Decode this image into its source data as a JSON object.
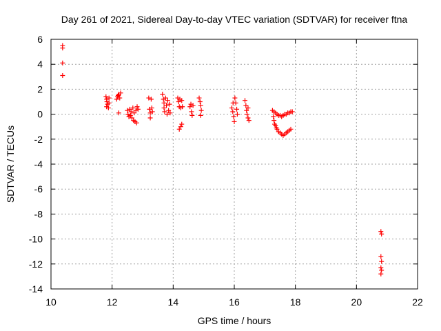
{
  "chart_data": {
    "type": "scatter",
    "title": "Day 261 of 2021, Sidereal Day-to-day VTEC variation (SDTVAR) for receiver ftna",
    "xlabel": "GPS time / hours",
    "ylabel": "SDTVAR / TECUs",
    "xlim": [
      10,
      22
    ],
    "ylim": [
      -14,
      6
    ],
    "xticks": [
      10,
      12,
      14,
      16,
      18,
      20,
      22
    ],
    "yticks": [
      -14,
      -12,
      -10,
      -8,
      -6,
      -4,
      -2,
      0,
      2,
      4,
      6
    ],
    "grid": true,
    "marker": "plus",
    "color": "#ff0000",
    "series": [
      {
        "name": "SDTVAR",
        "points": [
          [
            10.38,
            5.5
          ],
          [
            10.38,
            5.3
          ],
          [
            10.38,
            4.1
          ],
          [
            10.38,
            3.1
          ],
          [
            11.8,
            1.4
          ],
          [
            11.82,
            1.2
          ],
          [
            11.83,
            1.0
          ],
          [
            11.85,
            0.8
          ],
          [
            11.82,
            0.6
          ],
          [
            11.88,
            0.5
          ],
          [
            11.9,
            1.3
          ],
          [
            11.9,
            0.9
          ],
          [
            12.15,
            1.2
          ],
          [
            12.18,
            1.4
          ],
          [
            12.2,
            1.5
          ],
          [
            12.22,
            1.6
          ],
          [
            12.25,
            1.3
          ],
          [
            12.28,
            1.7
          ],
          [
            12.22,
            0.1
          ],
          [
            12.5,
            0.3
          ],
          [
            12.52,
            0.0
          ],
          [
            12.55,
            -0.2
          ],
          [
            12.58,
            0.4
          ],
          [
            12.6,
            -0.1
          ],
          [
            12.62,
            0.2
          ],
          [
            12.65,
            -0.3
          ],
          [
            12.68,
            0.5
          ],
          [
            12.7,
            -0.5
          ],
          [
            12.72,
            0.1
          ],
          [
            12.75,
            -0.6
          ],
          [
            12.78,
            0.3
          ],
          [
            12.8,
            -0.7
          ],
          [
            12.82,
            0.6
          ],
          [
            12.85,
            0.4
          ],
          [
            13.2,
            1.3
          ],
          [
            13.22,
            0.4
          ],
          [
            13.25,
            0.1
          ],
          [
            13.25,
            -0.3
          ],
          [
            13.28,
            1.2
          ],
          [
            13.3,
            0.5
          ],
          [
            13.32,
            0.2
          ],
          [
            13.65,
            1.6
          ],
          [
            13.68,
            1.2
          ],
          [
            13.7,
            0.9
          ],
          [
            13.7,
            0.5
          ],
          [
            13.72,
            0.2
          ],
          [
            13.75,
            1.3
          ],
          [
            13.78,
            0.7
          ],
          [
            13.8,
            0.0
          ],
          [
            13.82,
            1.1
          ],
          [
            13.85,
            0.3
          ],
          [
            13.88,
            0.8
          ],
          [
            13.9,
            0.1
          ],
          [
            14.15,
            1.3
          ],
          [
            14.18,
            1.0
          ],
          [
            14.2,
            0.6
          ],
          [
            14.22,
            1.2
          ],
          [
            14.25,
            0.5
          ],
          [
            14.28,
            1.1
          ],
          [
            14.3,
            0.6
          ],
          [
            14.2,
            -1.2
          ],
          [
            14.25,
            -1.0
          ],
          [
            14.28,
            -0.8
          ],
          [
            14.55,
            0.6
          ],
          [
            14.58,
            0.8
          ],
          [
            14.6,
            0.2
          ],
          [
            14.62,
            -0.1
          ],
          [
            14.65,
            0.7
          ],
          [
            14.85,
            1.3
          ],
          [
            14.88,
            1.0
          ],
          [
            14.9,
            0.7
          ],
          [
            14.92,
            0.3
          ],
          [
            14.9,
            -0.1
          ],
          [
            15.92,
            0.5
          ],
          [
            15.95,
            0.2
          ],
          [
            15.98,
            -0.2
          ],
          [
            16.0,
            -0.6
          ],
          [
            16.02,
            1.3
          ],
          [
            16.05,
            0.9
          ],
          [
            16.08,
            0.4
          ],
          [
            16.1,
            0.0
          ],
          [
            15.96,
            0.9
          ],
          [
            16.35,
            1.1
          ],
          [
            16.38,
            0.7
          ],
          [
            16.4,
            0.3
          ],
          [
            16.42,
            0.0
          ],
          [
            16.45,
            -0.3
          ],
          [
            16.48,
            -0.5
          ],
          [
            16.45,
            0.5
          ],
          [
            17.25,
            0.3
          ],
          [
            17.28,
            -0.2
          ],
          [
            17.3,
            -0.5
          ],
          [
            17.32,
            -0.8
          ],
          [
            17.35,
            -0.9
          ],
          [
            17.38,
            -1.1
          ],
          [
            17.4,
            -1.2
          ],
          [
            17.45,
            -1.4
          ],
          [
            17.5,
            -1.5
          ],
          [
            17.55,
            -1.6
          ],
          [
            17.6,
            -1.7
          ],
          [
            17.65,
            -1.6
          ],
          [
            17.7,
            -1.5
          ],
          [
            17.75,
            -1.4
          ],
          [
            17.8,
            -1.3
          ],
          [
            17.85,
            -1.2
          ],
          [
            17.3,
            0.2
          ],
          [
            17.35,
            0.1
          ],
          [
            17.4,
            0.0
          ],
          [
            17.45,
            -0.1
          ],
          [
            17.5,
            -0.1
          ],
          [
            17.55,
            -0.2
          ],
          [
            17.6,
            -0.1
          ],
          [
            17.65,
            0.0
          ],
          [
            17.7,
            0.0
          ],
          [
            17.75,
            0.1
          ],
          [
            17.8,
            0.1
          ],
          [
            17.85,
            0.2
          ],
          [
            17.9,
            0.2
          ],
          [
            20.8,
            -9.4
          ],
          [
            20.82,
            -9.6
          ],
          [
            20.8,
            -11.4
          ],
          [
            20.82,
            -11.8
          ],
          [
            20.8,
            -12.3
          ],
          [
            20.82,
            -12.5
          ],
          [
            20.8,
            -12.8
          ]
        ]
      }
    ]
  }
}
